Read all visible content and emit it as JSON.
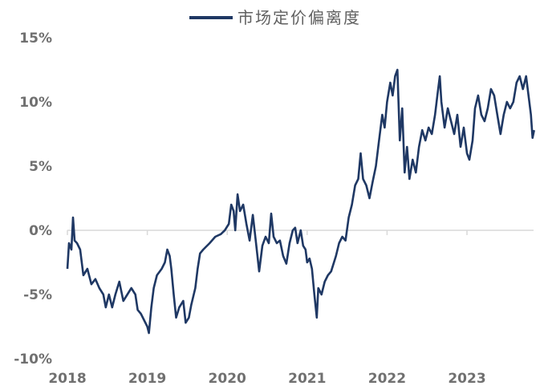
{
  "colors": {
    "line": "#1f3864",
    "axis_text": "#707070",
    "grid": "#d9d9d9"
  },
  "chart_data": {
    "type": "line",
    "title": "",
    "legend": {
      "position": "top",
      "entries": [
        "市场定价偏离度"
      ]
    },
    "xlabel": "",
    "ylabel": "",
    "xlim": [
      2018.0,
      2023.84
    ],
    "ylim": [
      -10,
      15
    ],
    "y_ticks": [
      15,
      10,
      5,
      0,
      -5,
      -10
    ],
    "y_tick_labels": [
      "15%",
      "10%",
      "5%",
      "0%",
      "-5%",
      "-10%"
    ],
    "x_ticks": [
      2018,
      2019,
      2020,
      2021,
      2022,
      2023
    ],
    "x_tick_labels": [
      "2018",
      "2019",
      "2020",
      "2021",
      "2022",
      "2023"
    ],
    "grid": "zero line only",
    "series": [
      {
        "name": "市场定价偏离度",
        "x": [
          2018.0,
          2018.02,
          2018.05,
          2018.07,
          2018.09,
          2018.12,
          2018.16,
          2018.2,
          2018.25,
          2018.3,
          2018.35,
          2018.4,
          2018.45,
          2018.48,
          2018.52,
          2018.56,
          2018.6,
          2018.65,
          2018.7,
          2018.75,
          2018.8,
          2018.85,
          2018.88,
          2018.92,
          2018.96,
          2019.0,
          2019.02,
          2019.05,
          2019.08,
          2019.12,
          2019.18,
          2019.22,
          2019.25,
          2019.28,
          2019.3,
          2019.33,
          2019.36,
          2019.4,
          2019.45,
          2019.48,
          2019.52,
          2019.55,
          2019.6,
          2019.63,
          2019.66,
          2019.7,
          2019.78,
          2019.85,
          2019.92,
          2019.97,
          2020.02,
          2020.05,
          2020.08,
          2020.1,
          2020.13,
          2020.16,
          2020.2,
          2020.24,
          2020.28,
          2020.32,
          2020.36,
          2020.4,
          2020.44,
          2020.48,
          2020.52,
          2020.55,
          2020.58,
          2020.62,
          2020.66,
          2020.7,
          2020.74,
          2020.78,
          2020.82,
          2020.85,
          2020.88,
          2020.92,
          2020.95,
          2020.98,
          2021.0,
          2021.03,
          2021.06,
          2021.09,
          2021.12,
          2021.14,
          2021.18,
          2021.22,
          2021.26,
          2021.3,
          2021.36,
          2021.4,
          2021.44,
          2021.48,
          2021.52,
          2021.56,
          2021.6,
          2021.64,
          2021.67,
          2021.7,
          2021.74,
          2021.78,
          2021.82,
          2021.86,
          2021.9,
          2021.94,
          2021.97,
          2022.0,
          2022.04,
          2022.07,
          2022.1,
          2022.13,
          2022.16,
          2022.19,
          2022.22,
          2022.25,
          2022.28,
          2022.32,
          2022.36,
          2022.4,
          2022.44,
          2022.48,
          2022.52,
          2022.56,
          2022.6,
          2022.63,
          2022.66,
          2022.68,
          2022.72,
          2022.76,
          2022.8,
          2022.84,
          2022.88,
          2022.92,
          2022.96,
          2023.0,
          2023.03,
          2023.07,
          2023.1,
          2023.14,
          2023.18,
          2023.22,
          2023.26,
          2023.3,
          2023.34,
          2023.38,
          2023.42,
          2023.46,
          2023.5,
          2023.54,
          2023.58,
          2023.62,
          2023.66,
          2023.7,
          2023.74,
          2023.78,
          2023.8,
          2023.82,
          2023.84
        ],
        "values": [
          -3.0,
          -1.0,
          -1.5,
          1.0,
          -0.8,
          -1.0,
          -1.5,
          -3.5,
          -3.0,
          -4.2,
          -3.8,
          -4.5,
          -5.0,
          -6.0,
          -5.0,
          -6.0,
          -5.0,
          -4.0,
          -5.5,
          -5.0,
          -4.5,
          -5.0,
          -6.2,
          -6.5,
          -7.0,
          -7.5,
          -8.0,
          -6.0,
          -4.5,
          -3.5,
          -3.0,
          -2.5,
          -1.5,
          -2.0,
          -3.0,
          -5.0,
          -6.8,
          -6.0,
          -5.5,
          -7.2,
          -6.8,
          -5.8,
          -4.5,
          -3.0,
          -1.8,
          -1.5,
          -1.0,
          -0.5,
          -0.3,
          0.0,
          0.5,
          2.0,
          1.5,
          0.0,
          2.8,
          1.5,
          2.0,
          0.5,
          -0.8,
          1.2,
          -1.0,
          -3.2,
          -1.2,
          -0.5,
          -1.0,
          1.3,
          -0.5,
          -1.0,
          -0.8,
          -2.0,
          -2.6,
          -1.0,
          0.0,
          0.2,
          -1.0,
          0.0,
          -1.2,
          -1.5,
          -2.5,
          -2.2,
          -3.0,
          -5.0,
          -6.8,
          -4.5,
          -5.0,
          -4.0,
          -3.5,
          -3.2,
          -2.0,
          -1.0,
          -0.5,
          -0.8,
          1.0,
          2.0,
          3.5,
          4.0,
          6.0,
          4.0,
          3.5,
          2.5,
          3.8,
          5.0,
          7.0,
          9.0,
          8.0,
          10.0,
          11.5,
          10.5,
          12.0,
          12.5,
          7.0,
          9.5,
          4.5,
          6.5,
          4.0,
          5.5,
          4.5,
          6.5,
          7.8,
          7.0,
          8.0,
          7.5,
          9.0,
          10.5,
          12.0,
          10.0,
          8.0,
          9.5,
          8.5,
          7.5,
          9.0,
          6.5,
          8.0,
          6.0,
          5.5,
          7.0,
          9.5,
          10.5,
          9.0,
          8.5,
          9.5,
          11.0,
          10.5,
          9.0,
          7.5,
          9.0,
          10.0,
          9.5,
          10.0,
          11.5,
          12.0,
          11.0,
          12.0,
          10.0,
          9.0,
          7.2,
          7.8
        ]
      }
    ]
  }
}
